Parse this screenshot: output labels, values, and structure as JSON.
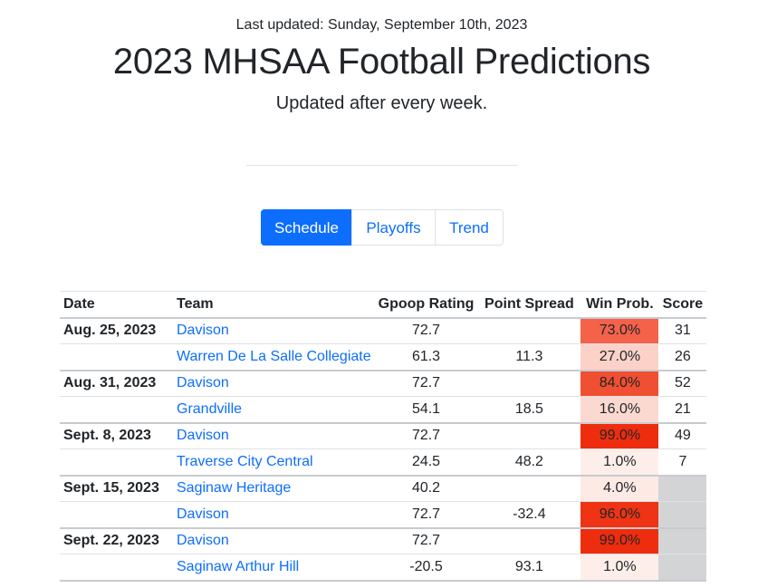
{
  "header": {
    "last_updated": "Last updated: Sunday, September 10th, 2023",
    "title": "2023 MHSAA Football Predictions",
    "subtitle": "Updated after every week."
  },
  "tabs": [
    {
      "label": "Schedule",
      "active": true
    },
    {
      "label": "Playoffs",
      "active": false
    },
    {
      "label": "Trend",
      "active": false
    }
  ],
  "table": {
    "columns": [
      "Date",
      "Team",
      "Gpoop Rating",
      "Point Spread",
      "Win Prob.",
      "Score"
    ],
    "games": [
      {
        "date": "Aug. 25, 2023",
        "rows": [
          {
            "team": "Davison",
            "rating": "72.7",
            "spread": "",
            "win": "73.0%",
            "win_bg": "#f4624a",
            "score": "31"
          },
          {
            "team": "Warren De La Salle Collegiate",
            "rating": "61.3",
            "spread": "11.3",
            "win": "27.0%",
            "win_bg": "#fcd2c8",
            "score": "26"
          }
        ]
      },
      {
        "date": "Aug. 31, 2023",
        "rows": [
          {
            "team": "Davison",
            "rating": "72.7",
            "spread": "",
            "win": "84.0%",
            "win_bg": "#f14f31",
            "score": "52"
          },
          {
            "team": "Grandville",
            "rating": "54.1",
            "spread": "18.5",
            "win": "16.0%",
            "win_bg": "#fcd9d0",
            "score": "21"
          }
        ]
      },
      {
        "date": "Sept. 8, 2023",
        "rows": [
          {
            "team": "Davison",
            "rating": "72.7",
            "spread": "",
            "win": "99.0%",
            "win_bg": "#ee2d0e",
            "score": "49"
          },
          {
            "team": "Traverse City Central",
            "rating": "24.5",
            "spread": "48.2",
            "win": "1.0%",
            "win_bg": "#feeeea",
            "score": "7"
          }
        ]
      },
      {
        "date": "Sept. 15, 2023",
        "rows": [
          {
            "team": "Saginaw Heritage",
            "rating": "40.2",
            "spread": "",
            "win": "4.0%",
            "win_bg": "#feeae5",
            "score": ""
          },
          {
            "team": "Davison",
            "rating": "72.7",
            "spread": "-32.4",
            "win": "96.0%",
            "win_bg": "#ee3414",
            "score": ""
          }
        ]
      },
      {
        "date": "Sept. 22, 2023",
        "rows": [
          {
            "team": "Davison",
            "rating": "72.7",
            "spread": "",
            "win": "99.0%",
            "win_bg": "#ee2d0e",
            "score": ""
          },
          {
            "team": "Saginaw Arthur Hill",
            "rating": "-20.5",
            "spread": "93.1",
            "win": "1.0%",
            "win_bg": "#feeeea",
            "score": ""
          }
        ]
      }
    ]
  }
}
